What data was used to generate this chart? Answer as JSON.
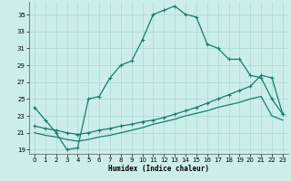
{
  "xlabel": "Humidex (Indice chaleur)",
  "background_color": "#cceee8",
  "grid_color": "#aad8d2",
  "line_color": "#1a7a6e",
  "xlim": [
    -0.5,
    23.5
  ],
  "ylim": [
    18.5,
    36.5
  ],
  "xticks": [
    0,
    1,
    2,
    3,
    4,
    5,
    6,
    7,
    8,
    9,
    10,
    11,
    12,
    13,
    14,
    15,
    16,
    17,
    18,
    19,
    20,
    21,
    22,
    23
  ],
  "yticks": [
    19,
    21,
    23,
    25,
    27,
    29,
    31,
    33,
    35
  ],
  "series1_x": [
    0,
    1,
    2,
    3,
    4,
    5,
    6,
    7,
    8,
    9,
    10,
    11,
    12,
    13,
    14,
    15,
    16,
    17,
    18,
    19,
    20,
    21,
    22,
    23
  ],
  "series1_y": [
    24.0,
    22.5,
    21.0,
    19.0,
    19.2,
    25.0,
    25.3,
    27.5,
    29.0,
    29.5,
    32.0,
    35.0,
    35.5,
    36.0,
    35.0,
    34.7,
    31.5,
    31.0,
    29.7,
    29.7,
    27.8,
    27.5,
    25.0,
    23.2
  ],
  "series2_x": [
    0,
    1,
    2,
    3,
    4,
    5,
    6,
    7,
    8,
    9,
    10,
    11,
    12,
    13,
    14,
    15,
    16,
    17,
    18,
    19,
    20,
    21,
    22,
    23
  ],
  "series2_y": [
    21.8,
    21.5,
    21.3,
    21.0,
    20.8,
    21.0,
    21.3,
    21.5,
    21.8,
    22.0,
    22.3,
    22.5,
    22.8,
    23.2,
    23.6,
    24.0,
    24.5,
    25.0,
    25.5,
    26.0,
    26.5,
    27.8,
    27.5,
    23.2
  ],
  "series3_x": [
    0,
    1,
    2,
    3,
    4,
    5,
    6,
    7,
    8,
    9,
    10,
    11,
    12,
    13,
    14,
    15,
    16,
    17,
    18,
    19,
    20,
    21,
    22,
    23
  ],
  "series3_y": [
    21.0,
    20.7,
    20.5,
    20.2,
    20.0,
    20.2,
    20.5,
    20.7,
    21.0,
    21.3,
    21.6,
    22.0,
    22.3,
    22.6,
    23.0,
    23.3,
    23.6,
    24.0,
    24.3,
    24.6,
    25.0,
    25.3,
    23.0,
    22.5
  ]
}
